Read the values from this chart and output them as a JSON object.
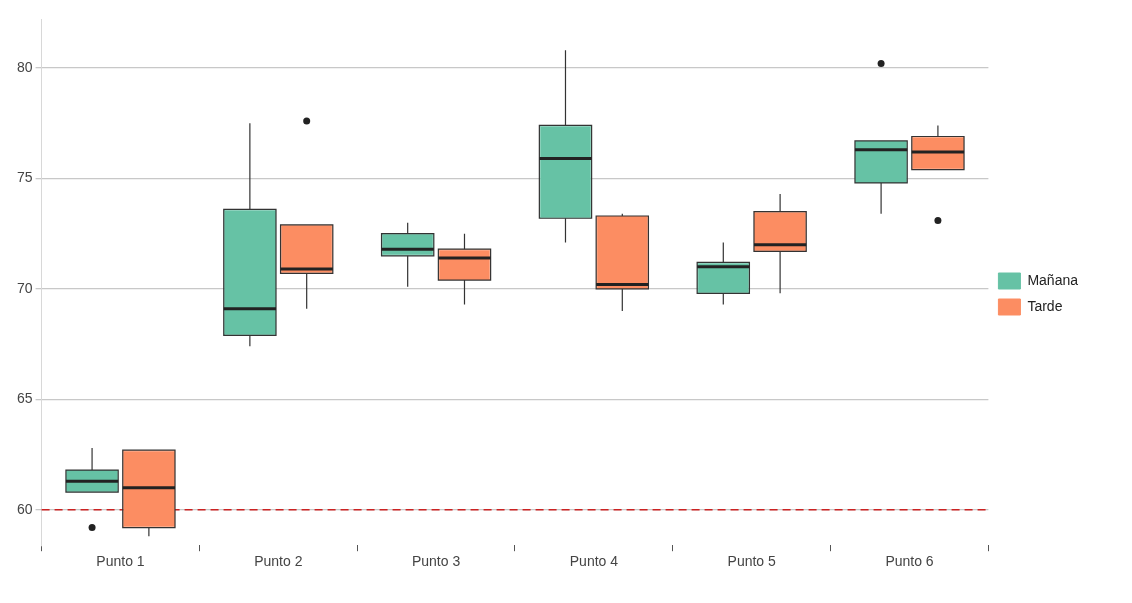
{
  "chart_data": {
    "type": "box",
    "categories": [
      "Punto 1",
      "Punto 2",
      "Punto 3",
      "Punto 4",
      "Punto 5",
      "Punto 6"
    ],
    "series": [
      {
        "name": "Mañana",
        "color": "#66c2a5",
        "boxes": [
          {
            "low": 60.8,
            "q1": 60.8,
            "median": 61.3,
            "q3": 61.8,
            "high": 62.8,
            "outliers": [
              59.2
            ]
          },
          {
            "low": 67.4,
            "q1": 67.9,
            "median": 69.1,
            "q3": 73.6,
            "high": 77.5
          },
          {
            "low": 70.1,
            "q1": 71.5,
            "median": 71.8,
            "q3": 72.5,
            "high": 73.0
          },
          {
            "low": 72.1,
            "q1": 73.2,
            "median": 75.9,
            "q3": 77.4,
            "high": 80.8
          },
          {
            "low": 69.3,
            "q1": 69.8,
            "median": 71.0,
            "q3": 71.2,
            "high": 72.1
          },
          {
            "low": 73.4,
            "q1": 74.8,
            "median": 76.3,
            "q3": 76.7,
            "high": 76.7,
            "outliers": [
              80.2
            ]
          }
        ]
      },
      {
        "name": "Tarde",
        "color": "#fc8d62",
        "boxes": [
          {
            "low": 58.8,
            "q1": 59.2,
            "median": 61.0,
            "q3": 62.7,
            "high": 62.7
          },
          {
            "low": 69.1,
            "q1": 70.7,
            "median": 70.9,
            "q3": 72.9,
            "high": 72.9,
            "outliers": [
              77.6
            ]
          },
          {
            "low": 69.3,
            "q1": 70.4,
            "median": 71.4,
            "q3": 71.8,
            "high": 72.5
          },
          {
            "low": 69.0,
            "q1": 70.0,
            "median": 70.2,
            "q3": 73.3,
            "high": 73.4
          },
          {
            "low": 69.8,
            "q1": 71.7,
            "median": 72.0,
            "q3": 73.5,
            "high": 74.3
          },
          {
            "low": 75.4,
            "q1": 75.4,
            "median": 76.2,
            "q3": 76.9,
            "high": 77.4,
            "outliers": [
              73.1
            ]
          }
        ]
      }
    ],
    "ylim": [
      58.4,
      82.2
    ],
    "yticks": [
      60,
      65,
      70,
      75,
      80
    ],
    "grid": "y",
    "legend": "right",
    "ref_lines": [
      {
        "axis": "y",
        "value": 60,
        "color": "#cc2222",
        "line_style": "dashed"
      }
    ]
  }
}
